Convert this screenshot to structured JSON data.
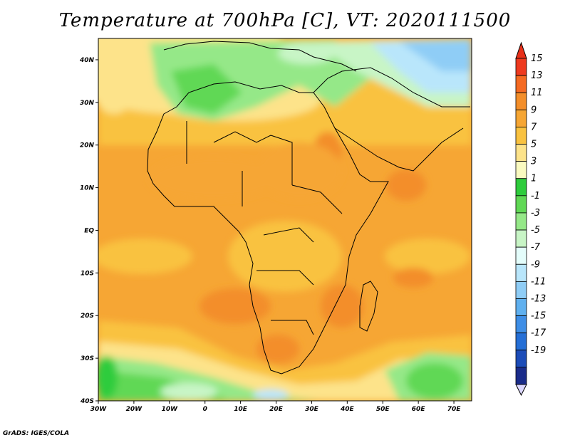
{
  "title": "Temperature at 700hPa [C], VT: 2020111500",
  "credit": "GrADS: IGES/COLA",
  "map": {
    "projection": "lat-lon",
    "lon_range": [
      -30,
      75
    ],
    "lat_range": [
      -40,
      45
    ],
    "lon_ticks": [
      {
        "v": -30,
        "label": "30W"
      },
      {
        "v": -20,
        "label": "20W"
      },
      {
        "v": -10,
        "label": "10W"
      },
      {
        "v": 0,
        "label": "0"
      },
      {
        "v": 10,
        "label": "10E"
      },
      {
        "v": 20,
        "label": "20E"
      },
      {
        "v": 30,
        "label": "30E"
      },
      {
        "v": 40,
        "label": "40E"
      },
      {
        "v": 50,
        "label": "50E"
      },
      {
        "v": 60,
        "label": "60E"
      },
      {
        "v": 70,
        "label": "70E"
      }
    ],
    "lat_ticks": [
      {
        "v": 40,
        "label": "40N"
      },
      {
        "v": 30,
        "label": "30N"
      },
      {
        "v": 20,
        "label": "20N"
      },
      {
        "v": 10,
        "label": "10N"
      },
      {
        "v": 0,
        "label": "EQ"
      },
      {
        "v": -10,
        "label": "10S"
      },
      {
        "v": -20,
        "label": "20S"
      },
      {
        "v": -30,
        "label": "30S"
      },
      {
        "v": -40,
        "label": "40S"
      }
    ]
  },
  "colorbar": {
    "levels": [
      "15",
      "13",
      "11",
      "9",
      "7",
      "5",
      "3",
      "1",
      "-1",
      "-3",
      "-5",
      "-7",
      "-9",
      "-11",
      "-13",
      "-15",
      "-17",
      "-19"
    ],
    "top_color": "#e8301a",
    "bottom_color": "#dcd8ff",
    "colors": [
      "#ee3a1f",
      "#f56a22",
      "#f38e2a",
      "#f6a634",
      "#f9c240",
      "#fde38a",
      "#fafac0",
      "#2ecc3c",
      "#60d855",
      "#95e888",
      "#c8f5c6",
      "#e4fdfb",
      "#b9e6fb",
      "#8fcdf6",
      "#5fb0ef",
      "#3e8ee6",
      "#256fd6",
      "#1c4cb8",
      "#1a2c8a"
    ]
  }
}
